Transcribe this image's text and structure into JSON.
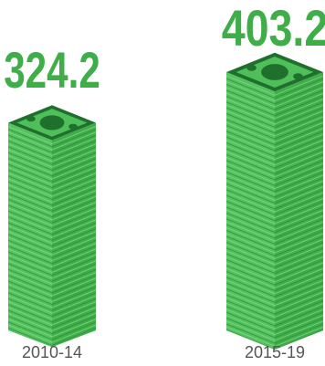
{
  "chart_data": {
    "type": "bar",
    "categories": [
      "2010-14",
      "2015-19"
    ],
    "values": [
      324.2,
      403.2
    ],
    "value_labels": [
      "324.2",
      "403.2"
    ],
    "title": "",
    "xlabel": "",
    "ylabel": "",
    "ylim": [
      0,
      403.2
    ],
    "grid": false,
    "legend": "none",
    "colors": {
      "value_text": "#3fae49",
      "stack_green": "#4fbf5a",
      "stack_dark": "#1f6f2d",
      "category_text": "#555555"
    },
    "icons": [
      "money-stack-icon",
      "banknote-icon"
    ]
  }
}
